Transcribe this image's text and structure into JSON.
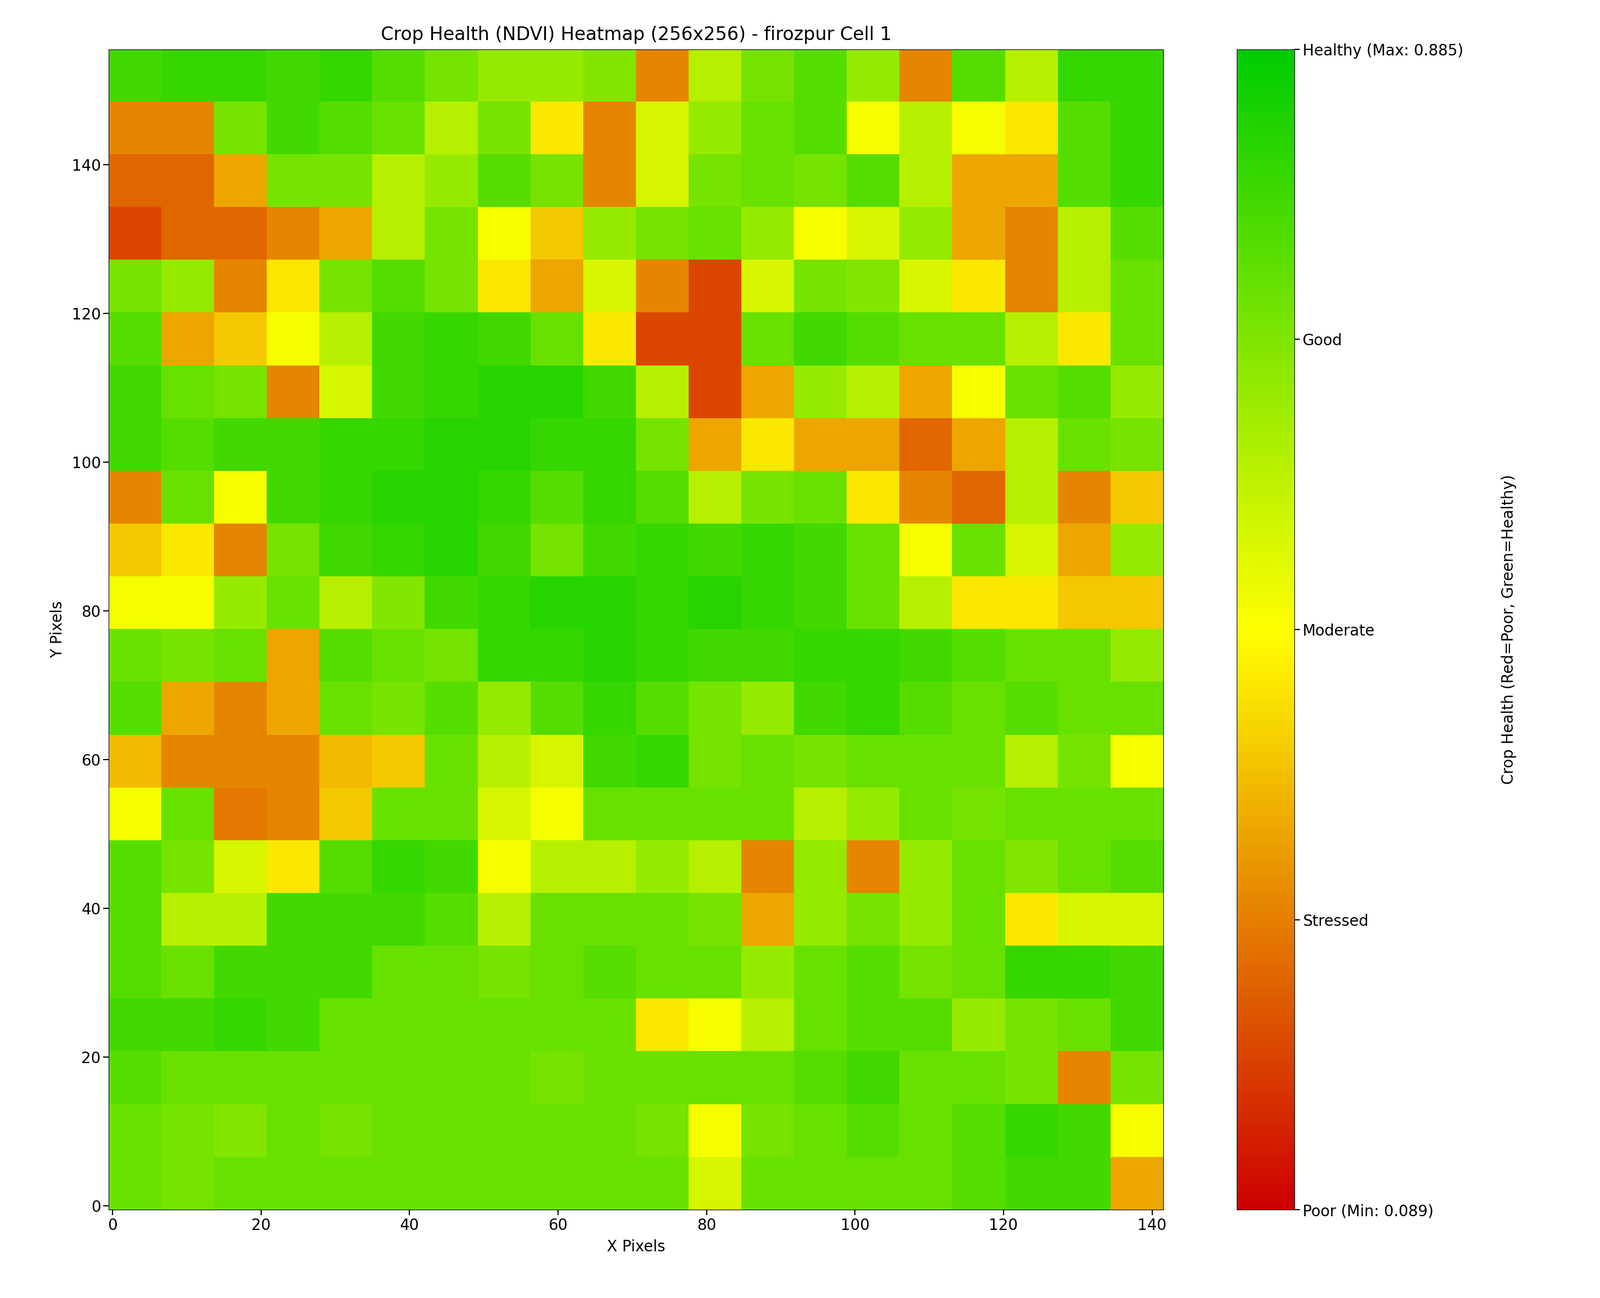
{
  "chart_data": {
    "type": "heatmap",
    "title": "Crop Health (NDVI) Heatmap (256x256) - firozpur Cell 1",
    "x_label": "X Pixels",
    "y_label": "Y Pixels",
    "xlim": [
      -0.5,
      141.5
    ],
    "ylim": [
      -0.5,
      155.5
    ],
    "xticks": [
      0,
      20,
      40,
      60,
      80,
      100,
      120,
      140
    ],
    "yticks": [
      0,
      20,
      40,
      60,
      80,
      100,
      120,
      140
    ],
    "cells": [
      [
        0.78,
        0.8,
        0.8,
        0.78,
        0.8,
        0.75,
        0.7,
        0.65,
        0.65,
        0.68,
        0.3,
        0.6,
        0.7,
        0.75,
        0.65,
        0.3,
        0.75,
        0.6,
        0.8,
        0.8
      ],
      [
        0.3,
        0.3,
        0.7,
        0.78,
        0.75,
        0.72,
        0.6,
        0.7,
        0.45,
        0.3,
        0.55,
        0.65,
        0.72,
        0.75,
        0.5,
        0.6,
        0.5,
        0.45,
        0.75,
        0.8
      ],
      [
        0.25,
        0.25,
        0.35,
        0.7,
        0.7,
        0.6,
        0.65,
        0.75,
        0.7,
        0.3,
        0.55,
        0.7,
        0.72,
        0.7,
        0.75,
        0.6,
        0.35,
        0.35,
        0.75,
        0.8
      ],
      [
        0.2,
        0.25,
        0.25,
        0.3,
        0.35,
        0.6,
        0.7,
        0.5,
        0.4,
        0.65,
        0.7,
        0.72,
        0.65,
        0.5,
        0.55,
        0.65,
        0.35,
        0.3,
        0.6,
        0.75
      ],
      [
        0.7,
        0.65,
        0.3,
        0.45,
        0.7,
        0.75,
        0.7,
        0.45,
        0.35,
        0.55,
        0.3,
        0.2,
        0.55,
        0.7,
        0.68,
        0.55,
        0.45,
        0.3,
        0.6,
        0.72
      ],
      [
        0.75,
        0.35,
        0.4,
        0.5,
        0.6,
        0.78,
        0.8,
        0.78,
        0.72,
        0.45,
        0.2,
        0.2,
        0.72,
        0.78,
        0.75,
        0.72,
        0.72,
        0.6,
        0.45,
        0.72
      ],
      [
        0.78,
        0.72,
        0.7,
        0.3,
        0.55,
        0.78,
        0.8,
        0.82,
        0.82,
        0.78,
        0.6,
        0.2,
        0.35,
        0.65,
        0.6,
        0.35,
        0.5,
        0.72,
        0.75,
        0.65
      ],
      [
        0.78,
        0.75,
        0.78,
        0.78,
        0.8,
        0.8,
        0.82,
        0.82,
        0.8,
        0.8,
        0.7,
        0.35,
        0.45,
        0.35,
        0.35,
        0.25,
        0.35,
        0.6,
        0.72,
        0.7
      ],
      [
        0.3,
        0.72,
        0.5,
        0.78,
        0.8,
        0.82,
        0.82,
        0.8,
        0.75,
        0.8,
        0.75,
        0.6,
        0.7,
        0.72,
        0.45,
        0.3,
        0.25,
        0.6,
        0.3,
        0.4
      ],
      [
        0.4,
        0.45,
        0.3,
        0.7,
        0.78,
        0.8,
        0.82,
        0.78,
        0.7,
        0.78,
        0.8,
        0.78,
        0.8,
        0.78,
        0.72,
        0.5,
        0.72,
        0.55,
        0.35,
        0.65
      ],
      [
        0.5,
        0.5,
        0.65,
        0.72,
        0.6,
        0.68,
        0.78,
        0.8,
        0.82,
        0.82,
        0.8,
        0.82,
        0.8,
        0.78,
        0.72,
        0.6,
        0.45,
        0.45,
        0.4,
        0.4
      ],
      [
        0.72,
        0.7,
        0.72,
        0.35,
        0.75,
        0.72,
        0.7,
        0.8,
        0.8,
        0.82,
        0.8,
        0.78,
        0.78,
        0.8,
        0.8,
        0.78,
        0.75,
        0.72,
        0.72,
        0.65
      ],
      [
        0.75,
        0.35,
        0.3,
        0.35,
        0.72,
        0.7,
        0.75,
        0.65,
        0.75,
        0.8,
        0.75,
        0.7,
        0.65,
        0.78,
        0.8,
        0.75,
        0.72,
        0.75,
        0.72,
        0.72
      ],
      [
        0.38,
        0.3,
        0.3,
        0.3,
        0.38,
        0.4,
        0.72,
        0.6,
        0.55,
        0.78,
        0.8,
        0.7,
        0.72,
        0.7,
        0.72,
        0.72,
        0.72,
        0.6,
        0.7,
        0.5
      ],
      [
        0.5,
        0.72,
        0.28,
        0.3,
        0.4,
        0.72,
        0.72,
        0.55,
        0.5,
        0.72,
        0.72,
        0.72,
        0.72,
        0.6,
        0.65,
        0.72,
        0.7,
        0.72,
        0.72,
        0.72
      ],
      [
        0.75,
        0.7,
        0.55,
        0.45,
        0.75,
        0.8,
        0.78,
        0.5,
        0.6,
        0.6,
        0.65,
        0.6,
        0.3,
        0.65,
        0.3,
        0.65,
        0.72,
        0.68,
        0.72,
        0.75
      ],
      [
        0.75,
        0.6,
        0.6,
        0.78,
        0.78,
        0.78,
        0.75,
        0.6,
        0.72,
        0.72,
        0.72,
        0.7,
        0.35,
        0.65,
        0.7,
        0.65,
        0.72,
        0.45,
        0.55,
        0.55
      ],
      [
        0.75,
        0.72,
        0.78,
        0.78,
        0.78,
        0.72,
        0.72,
        0.7,
        0.72,
        0.75,
        0.72,
        0.72,
        0.65,
        0.72,
        0.75,
        0.7,
        0.72,
        0.8,
        0.8,
        0.78
      ],
      [
        0.78,
        0.78,
        0.8,
        0.78,
        0.72,
        0.72,
        0.72,
        0.72,
        0.72,
        0.72,
        0.45,
        0.5,
        0.6,
        0.72,
        0.75,
        0.75,
        0.65,
        0.7,
        0.72,
        0.78
      ],
      [
        0.75,
        0.72,
        0.72,
        0.72,
        0.72,
        0.72,
        0.72,
        0.72,
        0.7,
        0.72,
        0.72,
        0.72,
        0.72,
        0.75,
        0.78,
        0.72,
        0.72,
        0.7,
        0.3,
        0.7
      ],
      [
        0.72,
        0.7,
        0.68,
        0.72,
        0.7,
        0.72,
        0.72,
        0.72,
        0.72,
        0.72,
        0.7,
        0.5,
        0.7,
        0.72,
        0.75,
        0.72,
        0.75,
        0.8,
        0.78,
        0.5
      ],
      [
        0.72,
        0.7,
        0.72,
        0.72,
        0.72,
        0.72,
        0.72,
        0.72,
        0.72,
        0.72,
        0.72,
        0.55,
        0.72,
        0.72,
        0.72,
        0.72,
        0.75,
        0.78,
        0.78,
        0.35
      ]
    ],
    "colorbar": {
      "range": [
        0.089,
        0.885
      ],
      "ticks": [
        {
          "value": 0.089,
          "label": "Poor (Min: 0.089)"
        },
        {
          "value": 0.288,
          "label": "Stressed"
        },
        {
          "value": 0.487,
          "label": "Moderate"
        },
        {
          "value": 0.686,
          "label": "Good"
        },
        {
          "value": 0.885,
          "label": "Healthy (Max: 0.885)"
        }
      ],
      "label": "Crop Health (Red=Poor, Green=Healthy)"
    }
  }
}
